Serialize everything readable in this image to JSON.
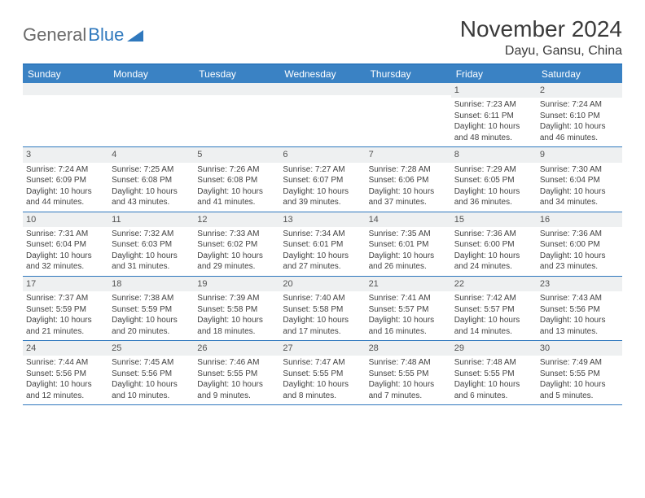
{
  "logo": {
    "text1": "General",
    "text2": "Blue"
  },
  "title": "November 2024",
  "location": "Dayu, Gansu, China",
  "colors": {
    "brand": "#3a82c4",
    "rule": "#2f78bd",
    "daynum_bg": "#eef0f1",
    "text": "#3a3a3a"
  },
  "weekdays": [
    "Sunday",
    "Monday",
    "Tuesday",
    "Wednesday",
    "Thursday",
    "Friday",
    "Saturday"
  ],
  "weeks": [
    [
      {
        "n": "",
        "sr": "",
        "ss": "",
        "dl": ""
      },
      {
        "n": "",
        "sr": "",
        "ss": "",
        "dl": ""
      },
      {
        "n": "",
        "sr": "",
        "ss": "",
        "dl": ""
      },
      {
        "n": "",
        "sr": "",
        "ss": "",
        "dl": ""
      },
      {
        "n": "",
        "sr": "",
        "ss": "",
        "dl": ""
      },
      {
        "n": "1",
        "sr": "Sunrise: 7:23 AM",
        "ss": "Sunset: 6:11 PM",
        "dl": "Daylight: 10 hours and 48 minutes."
      },
      {
        "n": "2",
        "sr": "Sunrise: 7:24 AM",
        "ss": "Sunset: 6:10 PM",
        "dl": "Daylight: 10 hours and 46 minutes."
      }
    ],
    [
      {
        "n": "3",
        "sr": "Sunrise: 7:24 AM",
        "ss": "Sunset: 6:09 PM",
        "dl": "Daylight: 10 hours and 44 minutes."
      },
      {
        "n": "4",
        "sr": "Sunrise: 7:25 AM",
        "ss": "Sunset: 6:08 PM",
        "dl": "Daylight: 10 hours and 43 minutes."
      },
      {
        "n": "5",
        "sr": "Sunrise: 7:26 AM",
        "ss": "Sunset: 6:08 PM",
        "dl": "Daylight: 10 hours and 41 minutes."
      },
      {
        "n": "6",
        "sr": "Sunrise: 7:27 AM",
        "ss": "Sunset: 6:07 PM",
        "dl": "Daylight: 10 hours and 39 minutes."
      },
      {
        "n": "7",
        "sr": "Sunrise: 7:28 AM",
        "ss": "Sunset: 6:06 PM",
        "dl": "Daylight: 10 hours and 37 minutes."
      },
      {
        "n": "8",
        "sr": "Sunrise: 7:29 AM",
        "ss": "Sunset: 6:05 PM",
        "dl": "Daylight: 10 hours and 36 minutes."
      },
      {
        "n": "9",
        "sr": "Sunrise: 7:30 AM",
        "ss": "Sunset: 6:04 PM",
        "dl": "Daylight: 10 hours and 34 minutes."
      }
    ],
    [
      {
        "n": "10",
        "sr": "Sunrise: 7:31 AM",
        "ss": "Sunset: 6:04 PM",
        "dl": "Daylight: 10 hours and 32 minutes."
      },
      {
        "n": "11",
        "sr": "Sunrise: 7:32 AM",
        "ss": "Sunset: 6:03 PM",
        "dl": "Daylight: 10 hours and 31 minutes."
      },
      {
        "n": "12",
        "sr": "Sunrise: 7:33 AM",
        "ss": "Sunset: 6:02 PM",
        "dl": "Daylight: 10 hours and 29 minutes."
      },
      {
        "n": "13",
        "sr": "Sunrise: 7:34 AM",
        "ss": "Sunset: 6:01 PM",
        "dl": "Daylight: 10 hours and 27 minutes."
      },
      {
        "n": "14",
        "sr": "Sunrise: 7:35 AM",
        "ss": "Sunset: 6:01 PM",
        "dl": "Daylight: 10 hours and 26 minutes."
      },
      {
        "n": "15",
        "sr": "Sunrise: 7:36 AM",
        "ss": "Sunset: 6:00 PM",
        "dl": "Daylight: 10 hours and 24 minutes."
      },
      {
        "n": "16",
        "sr": "Sunrise: 7:36 AM",
        "ss": "Sunset: 6:00 PM",
        "dl": "Daylight: 10 hours and 23 minutes."
      }
    ],
    [
      {
        "n": "17",
        "sr": "Sunrise: 7:37 AM",
        "ss": "Sunset: 5:59 PM",
        "dl": "Daylight: 10 hours and 21 minutes."
      },
      {
        "n": "18",
        "sr": "Sunrise: 7:38 AM",
        "ss": "Sunset: 5:59 PM",
        "dl": "Daylight: 10 hours and 20 minutes."
      },
      {
        "n": "19",
        "sr": "Sunrise: 7:39 AM",
        "ss": "Sunset: 5:58 PM",
        "dl": "Daylight: 10 hours and 18 minutes."
      },
      {
        "n": "20",
        "sr": "Sunrise: 7:40 AM",
        "ss": "Sunset: 5:58 PM",
        "dl": "Daylight: 10 hours and 17 minutes."
      },
      {
        "n": "21",
        "sr": "Sunrise: 7:41 AM",
        "ss": "Sunset: 5:57 PM",
        "dl": "Daylight: 10 hours and 16 minutes."
      },
      {
        "n": "22",
        "sr": "Sunrise: 7:42 AM",
        "ss": "Sunset: 5:57 PM",
        "dl": "Daylight: 10 hours and 14 minutes."
      },
      {
        "n": "23",
        "sr": "Sunrise: 7:43 AM",
        "ss": "Sunset: 5:56 PM",
        "dl": "Daylight: 10 hours and 13 minutes."
      }
    ],
    [
      {
        "n": "24",
        "sr": "Sunrise: 7:44 AM",
        "ss": "Sunset: 5:56 PM",
        "dl": "Daylight: 10 hours and 12 minutes."
      },
      {
        "n": "25",
        "sr": "Sunrise: 7:45 AM",
        "ss": "Sunset: 5:56 PM",
        "dl": "Daylight: 10 hours and 10 minutes."
      },
      {
        "n": "26",
        "sr": "Sunrise: 7:46 AM",
        "ss": "Sunset: 5:55 PM",
        "dl": "Daylight: 10 hours and 9 minutes."
      },
      {
        "n": "27",
        "sr": "Sunrise: 7:47 AM",
        "ss": "Sunset: 5:55 PM",
        "dl": "Daylight: 10 hours and 8 minutes."
      },
      {
        "n": "28",
        "sr": "Sunrise: 7:48 AM",
        "ss": "Sunset: 5:55 PM",
        "dl": "Daylight: 10 hours and 7 minutes."
      },
      {
        "n": "29",
        "sr": "Sunrise: 7:48 AM",
        "ss": "Sunset: 5:55 PM",
        "dl": "Daylight: 10 hours and 6 minutes."
      },
      {
        "n": "30",
        "sr": "Sunrise: 7:49 AM",
        "ss": "Sunset: 5:55 PM",
        "dl": "Daylight: 10 hours and 5 minutes."
      }
    ]
  ]
}
